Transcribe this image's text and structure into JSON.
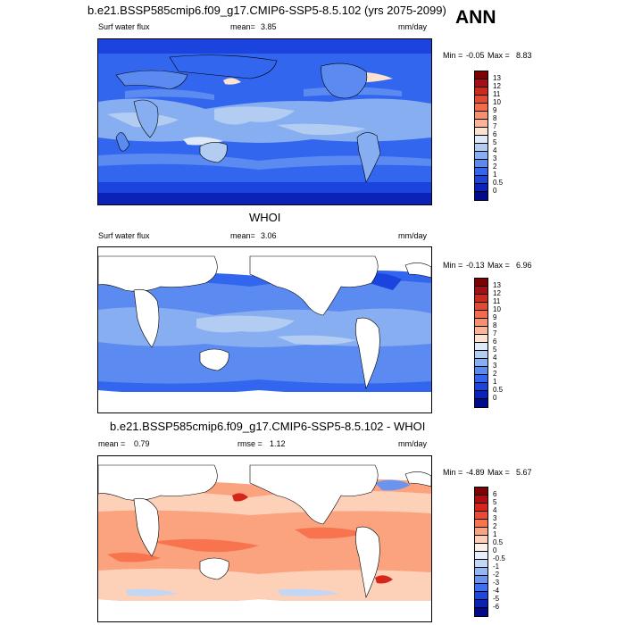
{
  "panel1": {
    "title": "b.e21.BSSP585cmip6.f09_g17.CMIP6-SSP5-8.5.102 (yrs 2075-2099)",
    "left_label": "Surf water flux",
    "mean_label": "mean=",
    "mean_value": "3.85",
    "units": "mm/day",
    "min_label": "Min =",
    "min_value": "-0.05",
    "max_label": "Max =",
    "max_value": "8.83",
    "levels": [
      "13",
      "12",
      "11",
      "10",
      "9",
      "8",
      "7",
      "6",
      "5",
      "4",
      "3",
      "2",
      "1",
      "0.5",
      "0"
    ]
  },
  "panel2": {
    "title": "WHOI",
    "left_label": "Surf water flux",
    "mean_label": "mean=",
    "mean_value": "3.06",
    "units": "mm/day",
    "min_label": "Min =",
    "min_value": "-0.13",
    "max_label": "Max =",
    "max_value": "6.96",
    "levels": [
      "13",
      "12",
      "11",
      "10",
      "9",
      "8",
      "7",
      "6",
      "5",
      "4",
      "3",
      "2",
      "1",
      "0.5",
      "0"
    ]
  },
  "panel3": {
    "title": "b.e21.BSSP585cmip6.f09_g17.CMIP6-SSP5-8.5.102 - WHOI",
    "mean_label": "mean =",
    "mean_value": "0.79",
    "rmse_label": "rmse =",
    "rmse_value": "1.12",
    "units": "mm/day",
    "min_label": "Min =",
    "min_value": "-4.89",
    "max_label": "Max =",
    "max_value": "5.67",
    "levels": [
      "6",
      "5",
      "4",
      "3",
      "2",
      "1",
      "0.5",
      "0",
      "-0.5",
      "-1",
      "-2",
      "-3",
      "-4",
      "-5",
      "-6"
    ]
  },
  "season": "ANN",
  "colors": {
    "abs_scale": [
      "#7a0403",
      "#a50f15",
      "#cb2a1e",
      "#e44a33",
      "#f26b4c",
      "#f8906f",
      "#fbb496",
      "#fde3cf",
      "#dfeaf8",
      "#b3cdf2",
      "#87aef0",
      "#5b8bf0",
      "#3366ee",
      "#1a44dd",
      "#0a22b8",
      "#000a8a"
    ],
    "diff_scale": [
      "#7a0403",
      "#b00c12",
      "#d6261b",
      "#ee4a33",
      "#f7744f",
      "#fba27f",
      "#fdd0b8",
      "#fef0e6",
      "#e6effb",
      "#c2d6f6",
      "#94b6f2",
      "#6a94f0",
      "#3e6ff0",
      "#1d47e0",
      "#0b23b5",
      "#000a8a"
    ],
    "land": "#ffffff"
  }
}
